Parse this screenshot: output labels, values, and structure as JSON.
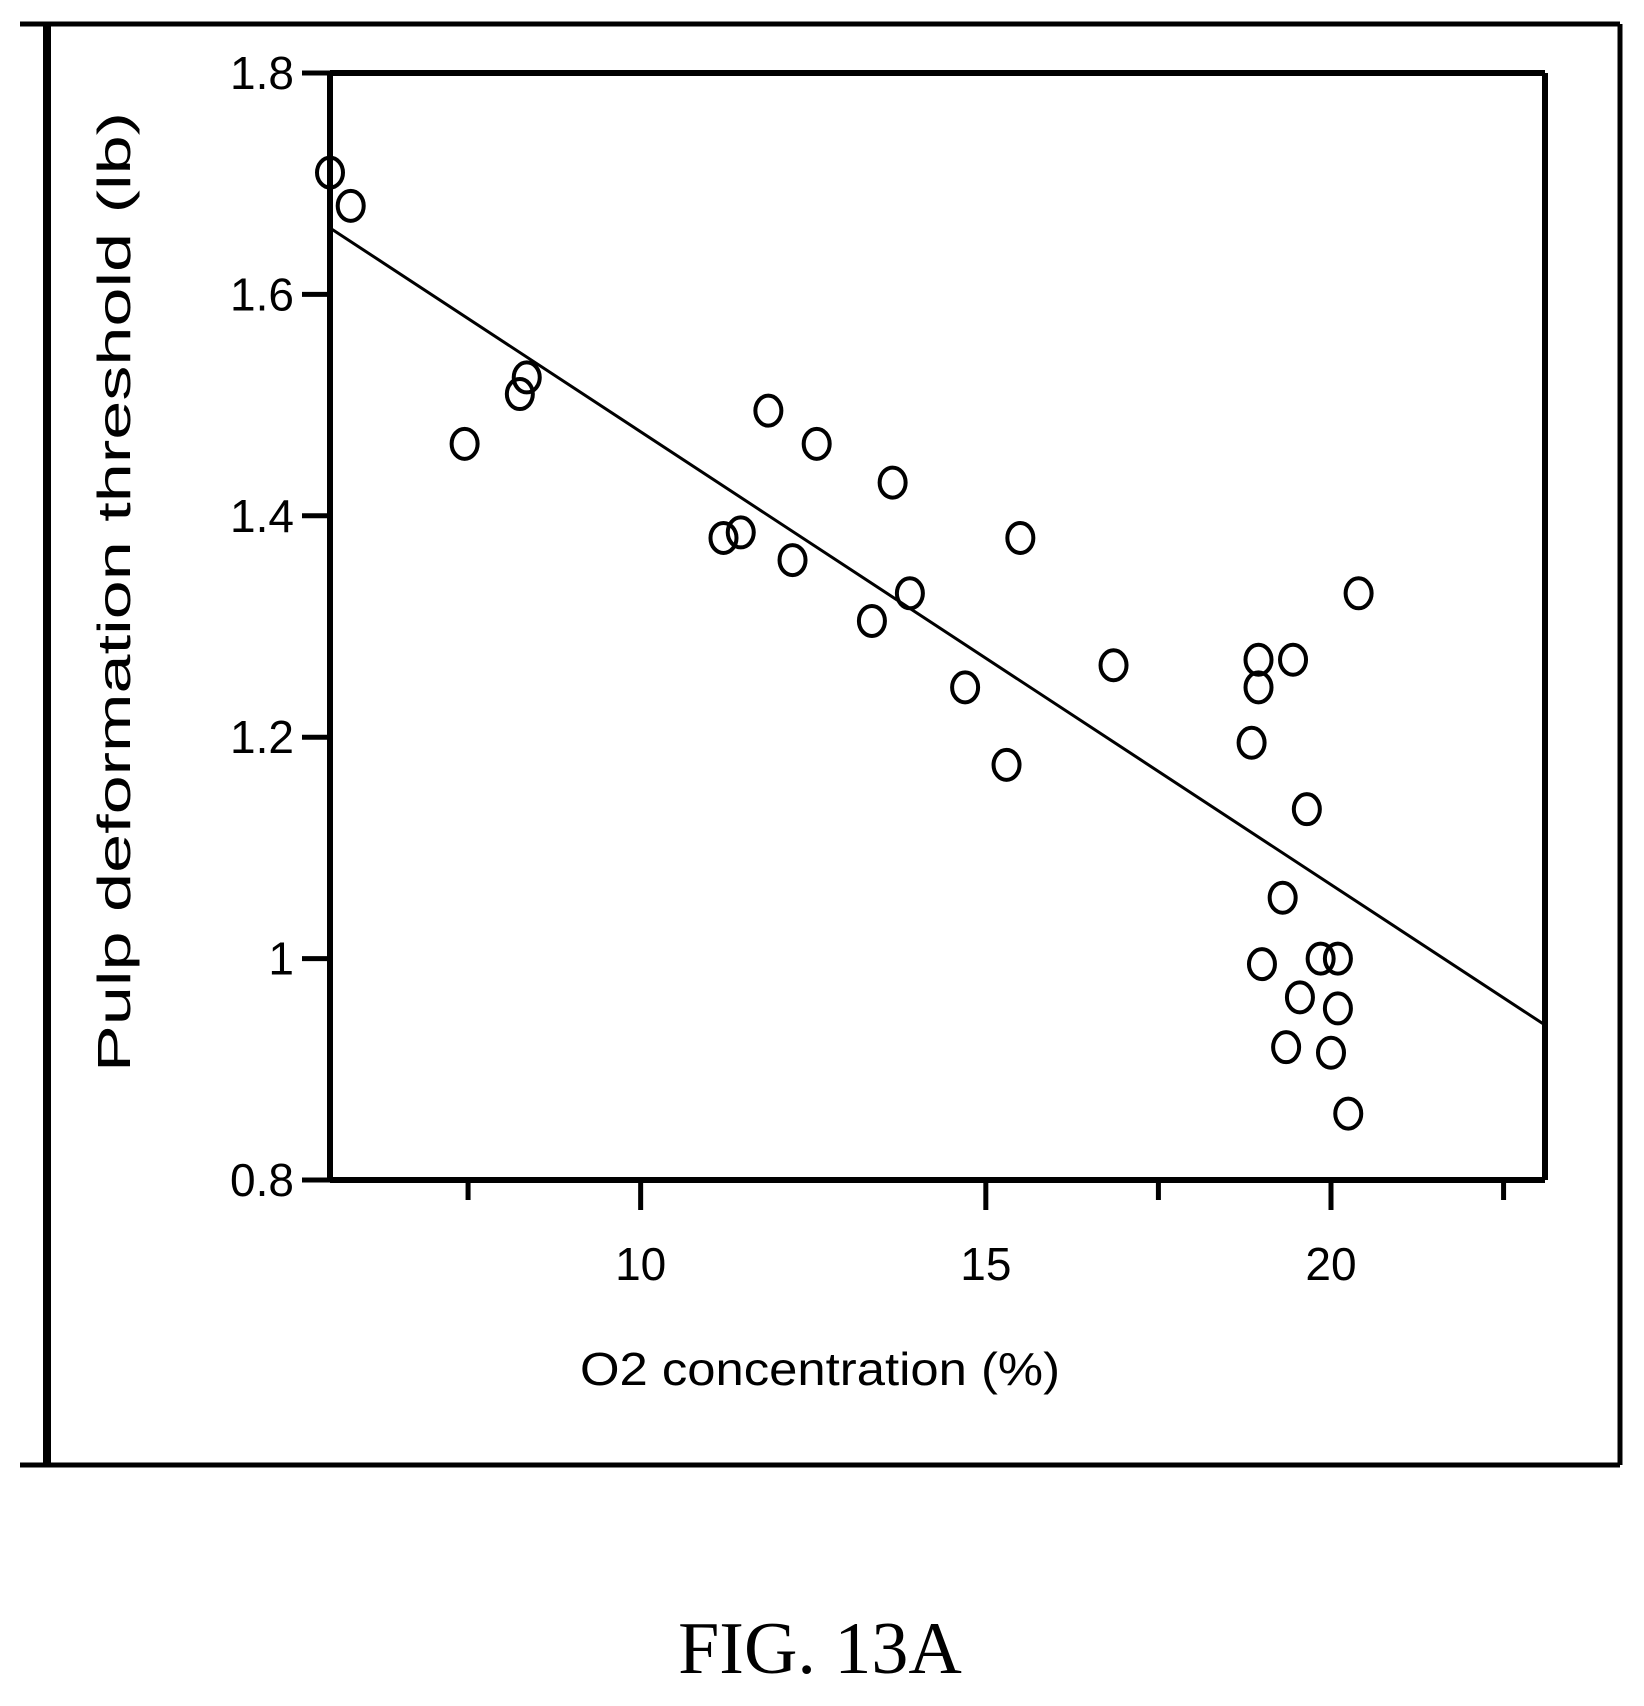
{
  "chart_data": {
    "type": "scatter",
    "title": "",
    "xlabel": "O2 concentration (%)",
    "ylabel": "Pulp deformation threshold (lb)",
    "xlim": [
      5.5,
      23.1
    ],
    "ylim": [
      0.8,
      1.8
    ],
    "x_major_ticks": [
      10,
      15,
      20
    ],
    "x_minor_ticks": [
      7.5,
      17.5,
      22.5
    ],
    "y_ticks": [
      0.8,
      1.0,
      1.2,
      1.4,
      1.6,
      1.8
    ],
    "x_tick_labels": [
      "10",
      "15",
      "20"
    ],
    "y_tick_labels": [
      "0.8",
      "1",
      "1.2",
      "1.4",
      "1.6",
      "1.8"
    ],
    "grid": false,
    "legend": "none",
    "points": [
      {
        "x": 5.5,
        "y": 1.71
      },
      {
        "x": 5.8,
        "y": 1.68
      },
      {
        "x": 7.45,
        "y": 1.465
      },
      {
        "x": 8.25,
        "y": 1.51
      },
      {
        "x": 8.35,
        "y": 1.525
      },
      {
        "x": 11.2,
        "y": 1.38
      },
      {
        "x": 11.45,
        "y": 1.385
      },
      {
        "x": 11.85,
        "y": 1.495
      },
      {
        "x": 12.2,
        "y": 1.36
      },
      {
        "x": 12.55,
        "y": 1.465
      },
      {
        "x": 13.35,
        "y": 1.305
      },
      {
        "x": 13.65,
        "y": 1.43
      },
      {
        "x": 13.9,
        "y": 1.33
      },
      {
        "x": 14.7,
        "y": 1.245
      },
      {
        "x": 15.3,
        "y": 1.175
      },
      {
        "x": 15.5,
        "y": 1.38
      },
      {
        "x": 16.85,
        "y": 1.265
      },
      {
        "x": 18.85,
        "y": 1.195
      },
      {
        "x": 18.95,
        "y": 1.245
      },
      {
        "x": 18.95,
        "y": 1.27
      },
      {
        "x": 19.0,
        "y": 0.995
      },
      {
        "x": 19.3,
        "y": 1.055
      },
      {
        "x": 19.35,
        "y": 0.92
      },
      {
        "x": 19.45,
        "y": 1.27
      },
      {
        "x": 19.55,
        "y": 0.965
      },
      {
        "x": 19.65,
        "y": 1.135
      },
      {
        "x": 19.85,
        "y": 1.0
      },
      {
        "x": 20.0,
        "y": 0.915
      },
      {
        "x": 20.1,
        "y": 0.955
      },
      {
        "x": 20.1,
        "y": 1.0
      },
      {
        "x": 20.25,
        "y": 0.86
      },
      {
        "x": 20.4,
        "y": 1.33
      }
    ],
    "fit_line": {
      "x": [
        5.5,
        23.1
      ],
      "y": [
        1.66,
        0.94
      ]
    }
  },
  "figure": {
    "caption": "FIG. 13A",
    "line_color": "#000000",
    "background": "#ffffff"
  }
}
